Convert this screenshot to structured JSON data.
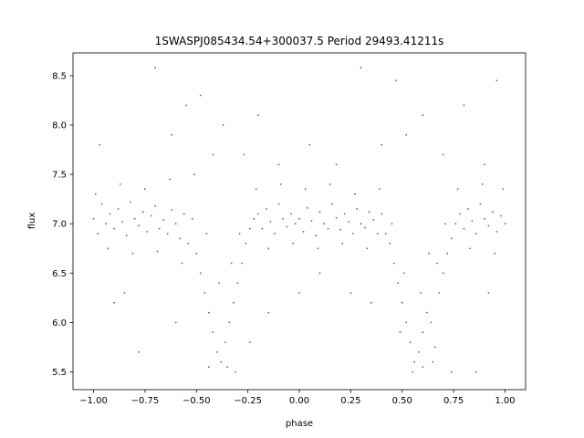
{
  "chart_data": {
    "type": "scatter",
    "title": "1SWASPJ085434.54+300037.5 Period 29493.41211s",
    "xlabel": "phase",
    "ylabel": "flux",
    "xlim": [
      -1.1,
      1.1
    ],
    "ylim": [
      5.32,
      8.73
    ],
    "xticks": [
      -1.0,
      -0.75,
      -0.5,
      -0.25,
      0.0,
      0.25,
      0.5,
      0.75,
      1.0
    ],
    "xtick_labels": [
      "−1.00",
      "−0.75",
      "−0.50",
      "−0.25",
      "0.00",
      "0.25",
      "0.50",
      "0.75",
      "1.00"
    ],
    "yticks": [
      5.5,
      6.0,
      6.5,
      7.0,
      7.5,
      8.0,
      8.5
    ],
    "ytick_labels": [
      "5.5",
      "6.0",
      "6.5",
      "7.0",
      "7.5",
      "8.0",
      "8.5"
    ],
    "grid": false,
    "marker_color": "#1f77b4",
    "series": [
      {
        "points": [
          [
            -1.0,
            7.05
          ],
          [
            -0.98,
            6.9
          ],
          [
            -0.96,
            7.2
          ],
          [
            -0.94,
            7.0
          ],
          [
            -0.92,
            7.1
          ],
          [
            -0.9,
            6.95
          ],
          [
            -0.88,
            7.15
          ],
          [
            -0.86,
            7.02
          ],
          [
            -0.84,
            6.88
          ],
          [
            -0.82,
            7.22
          ],
          [
            -0.8,
            7.05
          ],
          [
            -0.78,
            6.98
          ],
          [
            -0.76,
            7.12
          ],
          [
            -0.74,
            6.92
          ],
          [
            -0.72,
            7.08
          ],
          [
            -0.7,
            7.18
          ],
          [
            -0.68,
            6.95
          ],
          [
            -0.66,
            7.04
          ],
          [
            -0.64,
            6.9
          ],
          [
            -0.62,
            7.14
          ],
          [
            -0.6,
            7.0
          ],
          [
            -0.58,
            6.85
          ],
          [
            -0.56,
            7.1
          ],
          [
            -0.54,
            6.8
          ],
          [
            -0.52,
            7.05
          ],
          [
            -0.5,
            6.7
          ],
          [
            -0.48,
            6.5
          ],
          [
            -0.46,
            6.3
          ],
          [
            -0.44,
            6.1
          ],
          [
            -0.42,
            5.9
          ],
          [
            -0.4,
            5.7
          ],
          [
            -0.38,
            5.6
          ],
          [
            -0.36,
            5.8
          ],
          [
            -0.34,
            6.0
          ],
          [
            -0.32,
            6.2
          ],
          [
            -0.3,
            6.4
          ],
          [
            -0.28,
            6.6
          ],
          [
            -0.26,
            6.8
          ],
          [
            -0.24,
            6.95
          ],
          [
            -0.22,
            7.05
          ],
          [
            -0.2,
            7.1
          ],
          [
            -0.18,
            6.95
          ],
          [
            -0.16,
            7.15
          ],
          [
            -0.14,
            7.02
          ],
          [
            -0.12,
            6.9
          ],
          [
            -0.1,
            7.2
          ],
          [
            -0.08,
            7.05
          ],
          [
            -0.06,
            6.97
          ],
          [
            -0.04,
            7.1
          ],
          [
            -0.02,
            7.0
          ],
          [
            0.0,
            7.05
          ],
          [
            0.02,
            6.92
          ],
          [
            0.04,
            7.16
          ],
          [
            0.06,
            7.03
          ],
          [
            0.08,
            6.88
          ],
          [
            0.1,
            7.12
          ],
          [
            0.12,
            7.0
          ],
          [
            0.14,
            6.95
          ],
          [
            0.16,
            7.2
          ],
          [
            0.18,
            7.06
          ],
          [
            0.2,
            6.94
          ],
          [
            0.22,
            7.1
          ],
          [
            0.24,
            7.02
          ],
          [
            0.26,
            6.9
          ],
          [
            0.28,
            7.15
          ],
          [
            0.3,
            7.0
          ],
          [
            0.32,
            6.96
          ],
          [
            0.34,
            7.12
          ],
          [
            0.36,
            7.04
          ],
          [
            0.38,
            6.9
          ],
          [
            0.4,
            7.1
          ],
          [
            0.42,
            6.9
          ],
          [
            0.44,
            6.8
          ],
          [
            0.46,
            6.6
          ],
          [
            0.48,
            6.4
          ],
          [
            0.5,
            6.2
          ],
          [
            0.52,
            6.0
          ],
          [
            0.54,
            5.8
          ],
          [
            0.56,
            5.6
          ],
          [
            0.58,
            5.7
          ],
          [
            0.6,
            5.9
          ],
          [
            0.62,
            6.1
          ],
          [
            0.64,
            6.0
          ],
          [
            0.66,
            5.75
          ],
          [
            0.68,
            6.3
          ],
          [
            0.7,
            6.5
          ],
          [
            0.72,
            6.7
          ],
          [
            0.74,
            6.85
          ],
          [
            0.76,
            7.0
          ],
          [
            0.78,
            7.1
          ],
          [
            0.8,
            6.95
          ],
          [
            0.82,
            7.15
          ],
          [
            0.84,
            7.03
          ],
          [
            0.86,
            6.9
          ],
          [
            0.88,
            7.2
          ],
          [
            0.9,
            7.05
          ],
          [
            0.92,
            6.98
          ],
          [
            0.94,
            7.12
          ],
          [
            0.96,
            6.92
          ],
          [
            0.98,
            7.08
          ],
          [
            1.0,
            7.0
          ],
          [
            -0.99,
            7.3
          ],
          [
            -0.93,
            6.75
          ],
          [
            -0.87,
            7.4
          ],
          [
            -0.81,
            6.7
          ],
          [
            -0.75,
            7.35
          ],
          [
            -0.69,
            6.72
          ],
          [
            -0.63,
            7.45
          ],
          [
            -0.57,
            6.6
          ],
          [
            -0.51,
            7.5
          ],
          [
            -0.45,
            6.9
          ],
          [
            -0.39,
            6.4
          ],
          [
            -0.35,
            5.55
          ],
          [
            -0.33,
            6.6
          ],
          [
            -0.29,
            6.9
          ],
          [
            -0.21,
            7.35
          ],
          [
            -0.15,
            6.75
          ],
          [
            -0.09,
            7.4
          ],
          [
            -0.03,
            6.8
          ],
          [
            0.03,
            7.35
          ],
          [
            0.09,
            6.75
          ],
          [
            0.15,
            7.4
          ],
          [
            0.21,
            6.8
          ],
          [
            0.27,
            7.3
          ],
          [
            0.33,
            6.75
          ],
          [
            0.39,
            7.35
          ],
          [
            0.45,
            7.0
          ],
          [
            0.51,
            6.5
          ],
          [
            0.55,
            5.5
          ],
          [
            0.59,
            6.3
          ],
          [
            0.63,
            6.7
          ],
          [
            0.65,
            5.6
          ],
          [
            0.67,
            6.6
          ],
          [
            0.71,
            7.0
          ],
          [
            0.77,
            7.35
          ],
          [
            0.83,
            6.75
          ],
          [
            0.89,
            7.4
          ],
          [
            0.95,
            6.7
          ],
          [
            0.99,
            7.35
          ],
          [
            -0.97,
            7.8
          ],
          [
            -0.85,
            6.3
          ],
          [
            -0.7,
            8.58
          ],
          [
            -0.62,
            7.9
          ],
          [
            -0.55,
            8.2
          ],
          [
            -0.48,
            8.3
          ],
          [
            -0.42,
            7.7
          ],
          [
            -0.37,
            8.0
          ],
          [
            -0.27,
            7.7
          ],
          [
            -0.2,
            8.1
          ],
          [
            -0.1,
            7.6
          ],
          [
            0.0,
            6.3
          ],
          [
            0.05,
            7.8
          ],
          [
            0.18,
            7.6
          ],
          [
            0.3,
            8.58
          ],
          [
            0.4,
            7.8
          ],
          [
            0.47,
            8.45
          ],
          [
            0.52,
            7.9
          ],
          [
            0.6,
            8.1
          ],
          [
            0.7,
            7.7
          ],
          [
            0.8,
            8.2
          ],
          [
            0.9,
            7.6
          ],
          [
            0.96,
            8.45
          ],
          [
            -0.78,
            5.7
          ],
          [
            -0.6,
            6.0
          ],
          [
            -0.44,
            5.55
          ],
          [
            -0.31,
            5.5
          ],
          [
            -0.24,
            5.8
          ],
          [
            0.49,
            5.9
          ],
          [
            0.6,
            5.55
          ],
          [
            0.74,
            5.5
          ],
          [
            0.86,
            5.5
          ],
          [
            0.92,
            6.3
          ],
          [
            -0.9,
            6.2
          ],
          [
            0.25,
            6.3
          ],
          [
            -0.15,
            6.1
          ],
          [
            0.1,
            6.5
          ],
          [
            0.35,
            6.2
          ]
        ]
      }
    ]
  }
}
